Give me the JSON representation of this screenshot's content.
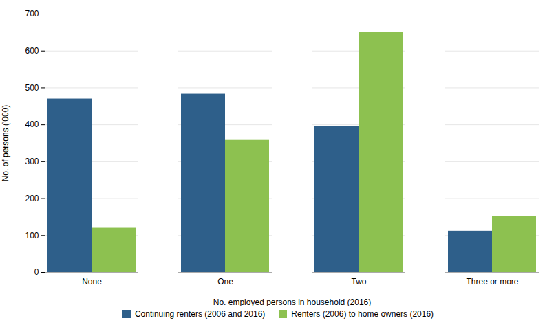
{
  "chart_data": {
    "type": "bar",
    "categories": [
      "None",
      "One",
      "Two",
      "Three or more"
    ],
    "series": [
      {
        "name": "Continuing renters (2006 and 2016)",
        "color": "#2E5F8A",
        "values": [
          470,
          483,
          395,
          112
        ]
      },
      {
        "name": "Renters (2006) to home owners (2016)",
        "color": "#8DC150",
        "values": [
          120,
          358,
          651,
          152
        ]
      }
    ],
    "xlabel": "No. employed persons in household (2016)",
    "ylabel": "No. of persons ('000)",
    "ylim": [
      0,
      700
    ],
    "yticks": [
      0,
      100,
      200,
      300,
      400,
      500,
      600,
      700
    ],
    "grid": true,
    "legend": "bottom"
  }
}
